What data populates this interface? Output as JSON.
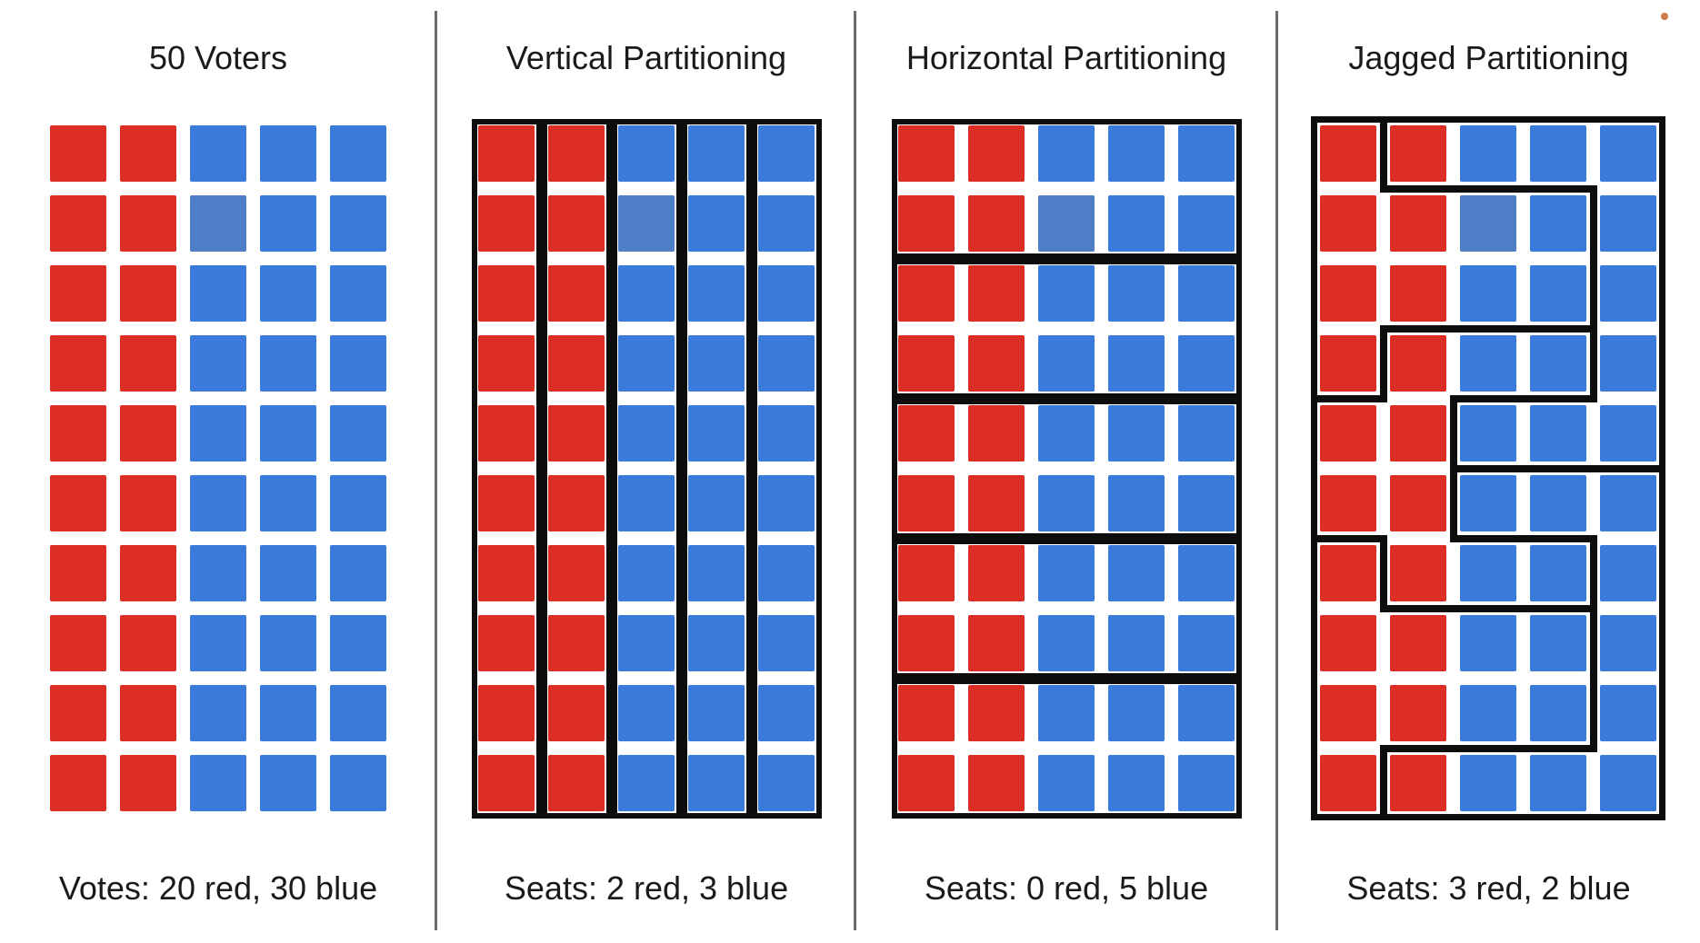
{
  "colors": {
    "red": "#DC2E24",
    "blue": "#3A7ADB",
    "muted_blue": "#4E7EC5",
    "line": "#0D0D0D",
    "divider": "#6B6B6B",
    "text": "#1A1A1A",
    "background": "#FFFFFF",
    "orange_dot": "#CE7A4B"
  },
  "grid": {
    "rows": 10,
    "cols": 5,
    "red_columns": [
      1,
      2
    ],
    "blue_columns": [
      3,
      4,
      5
    ],
    "muted_blue_cells": [
      {
        "row": 2,
        "col": 3
      }
    ]
  },
  "panels": [
    {
      "title": "50 Voters",
      "caption": "Votes: 20 red, 30 blue",
      "districts": {
        "type": "none"
      }
    },
    {
      "title": "Vertical Partitioning",
      "caption": "Seats: 2 red, 3 blue",
      "districts": {
        "type": "columns",
        "count": 5
      }
    },
    {
      "title": "Horizontal Partitioning",
      "caption": "Seats: 0 red, 5 blue",
      "districts": {
        "type": "row_pairs",
        "count": 5
      }
    },
    {
      "title": "Jagged Partitioning",
      "caption": "Seats: 3 red, 2 blue",
      "districts": {
        "type": "walls",
        "vertical_walls": [
          {
            "after_col": 1,
            "rows": [
              1,
              1
            ]
          },
          {
            "after_col": 1,
            "rows": [
              4,
              4
            ]
          },
          {
            "after_col": 1,
            "rows": [
              7,
              7
            ]
          },
          {
            "after_col": 1,
            "rows": [
              10,
              10
            ]
          },
          {
            "after_col": 2,
            "rows": [
              5,
              6
            ]
          },
          {
            "after_col": 4,
            "rows": [
              2,
              4
            ]
          },
          {
            "after_col": 4,
            "rows": [
              7,
              9
            ]
          }
        ],
        "horizontal_walls": [
          {
            "after_row": 1,
            "cols": [
              2,
              4
            ]
          },
          {
            "after_row": 3,
            "cols": [
              2,
              4
            ]
          },
          {
            "after_row": 4,
            "cols": [
              1,
              1
            ]
          },
          {
            "after_row": 4,
            "cols": [
              3,
              4
            ]
          },
          {
            "after_row": 5,
            "cols": [
              3,
              5
            ]
          },
          {
            "after_row": 6,
            "cols": [
              1,
              1
            ]
          },
          {
            "after_row": 6,
            "cols": [
              3,
              4
            ]
          },
          {
            "after_row": 7,
            "cols": [
              2,
              4
            ]
          },
          {
            "after_row": 9,
            "cols": [
              2,
              4
            ]
          }
        ]
      }
    }
  ]
}
